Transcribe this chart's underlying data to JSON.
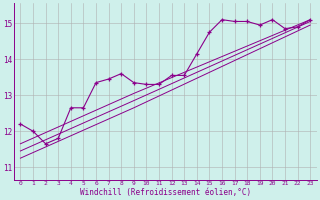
{
  "xlabel": "Windchill (Refroidissement éolien,°C)",
  "bg_color": "#cff0eb",
  "line_color": "#8b008b",
  "grid_color": "#b0b0b0",
  "x_ticks": [
    0,
    1,
    2,
    3,
    4,
    5,
    6,
    7,
    8,
    9,
    10,
    11,
    12,
    13,
    14,
    15,
    16,
    17,
    18,
    19,
    20,
    21,
    22,
    23
  ],
  "y_ticks": [
    11,
    12,
    13,
    14,
    15
  ],
  "xlim": [
    -0.5,
    23.5
  ],
  "ylim": [
    10.65,
    15.55
  ],
  "series1": {
    "x": [
      0,
      1,
      2,
      3,
      4,
      5,
      6,
      7,
      8,
      9,
      10,
      11,
      12,
      13,
      14,
      15,
      16,
      17,
      18,
      19,
      20,
      21,
      22,
      23
    ],
    "y": [
      12.2,
      12.0,
      11.65,
      11.8,
      12.65,
      12.65,
      13.35,
      13.45,
      13.6,
      13.35,
      13.3,
      13.3,
      13.55,
      13.55,
      14.15,
      14.75,
      15.1,
      15.05,
      15.05,
      14.95,
      15.1,
      14.85,
      14.9,
      15.1
    ]
  },
  "series2": {
    "x": [
      0,
      9,
      23
    ],
    "y": [
      11.65,
      13.05,
      15.1
    ]
  },
  "series3": {
    "x": [
      0,
      9,
      23
    ],
    "y": [
      11.45,
      12.85,
      15.05
    ]
  },
  "series4": {
    "x": [
      0,
      9,
      23
    ],
    "y": [
      11.25,
      12.65,
      14.95
    ]
  }
}
